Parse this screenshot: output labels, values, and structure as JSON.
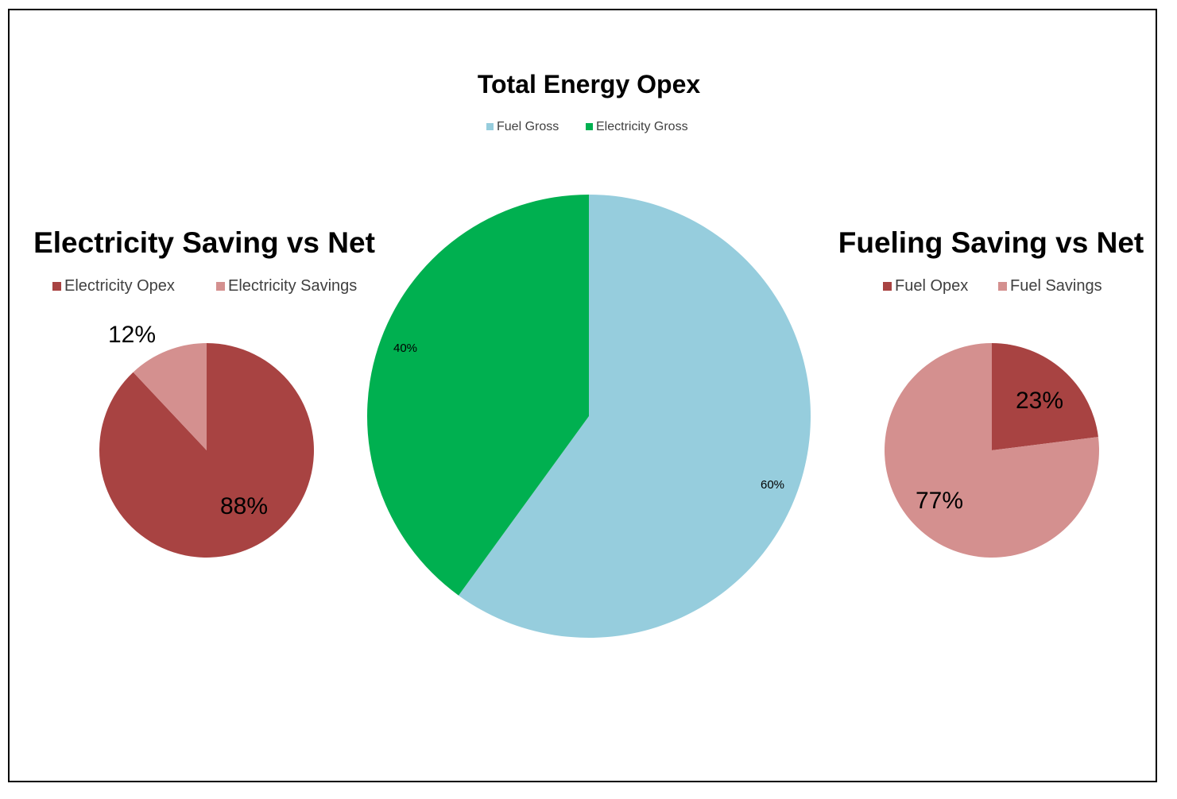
{
  "chart_data": [
    {
      "type": "pie",
      "title": "Electricity Saving vs Net",
      "categories": [
        "Electricity Opex",
        "Electricity Savings"
      ],
      "values": [
        88,
        12
      ],
      "labels": [
        "88%",
        "12%"
      ],
      "colors": [
        "#A84342",
        "#D4908F"
      ],
      "legend": "top"
    },
    {
      "type": "pie",
      "title": "Total Energy Opex",
      "categories": [
        "Fuel Gross",
        "Electricity Gross"
      ],
      "values": [
        60,
        40
      ],
      "labels": [
        "60%",
        "40%"
      ],
      "colors": [
        "#96CDDD",
        "#00B050"
      ],
      "legend": "top"
    },
    {
      "type": "pie",
      "title": "Fueling Saving vs Net",
      "categories": [
        "Fuel Opex",
        "Fuel Savings"
      ],
      "values": [
        23,
        77
      ],
      "labels": [
        "23%",
        "77%"
      ],
      "colors": [
        "#A84342",
        "#D4908F"
      ],
      "legend": "top"
    }
  ]
}
